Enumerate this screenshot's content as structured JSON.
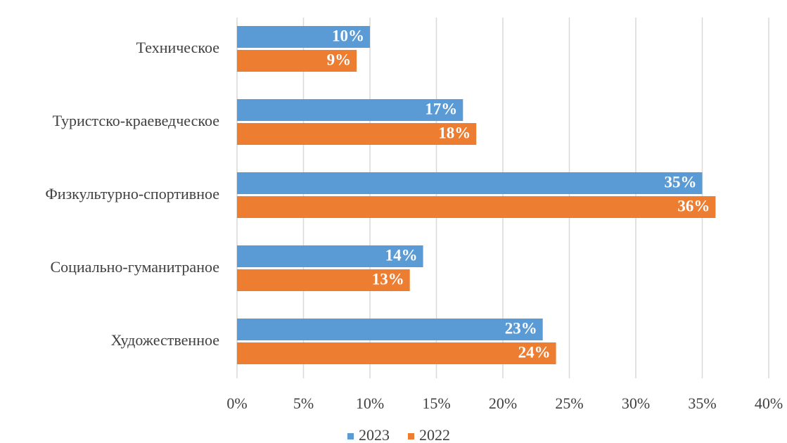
{
  "chart_data": {
    "type": "hbar",
    "categories": [
      "Техническое",
      "Туристско-краеведческое",
      "Физкультурно-спортивное",
      "Социально-гуманитраное",
      "Художественное"
    ],
    "series": [
      {
        "name": "2023",
        "color": "#5b9bd5",
        "values": [
          10,
          17,
          35,
          14,
          23
        ],
        "value_labels": [
          "10%",
          "17%",
          "35%",
          "14%",
          "23%"
        ]
      },
      {
        "name": "2022",
        "color": "#ed7d31",
        "values": [
          9,
          18,
          36,
          13,
          24
        ],
        "value_labels": [
          "9%",
          "18%",
          "36%",
          "13%",
          "24%"
        ]
      }
    ],
    "xlim": [
      0,
      40
    ],
    "xticks": [
      {
        "value": 0,
        "label": "0%"
      },
      {
        "value": 5,
        "label": "5%"
      },
      {
        "value": 10,
        "label": "10%"
      },
      {
        "value": 15,
        "label": "15%"
      },
      {
        "value": 20,
        "label": "20%"
      },
      {
        "value": 25,
        "label": "25%"
      },
      {
        "value": 30,
        "label": "30%"
      },
      {
        "value": 35,
        "label": "35%"
      },
      {
        "value": 40,
        "label": "40%"
      }
    ],
    "grid": true,
    "legend": "bottom"
  }
}
